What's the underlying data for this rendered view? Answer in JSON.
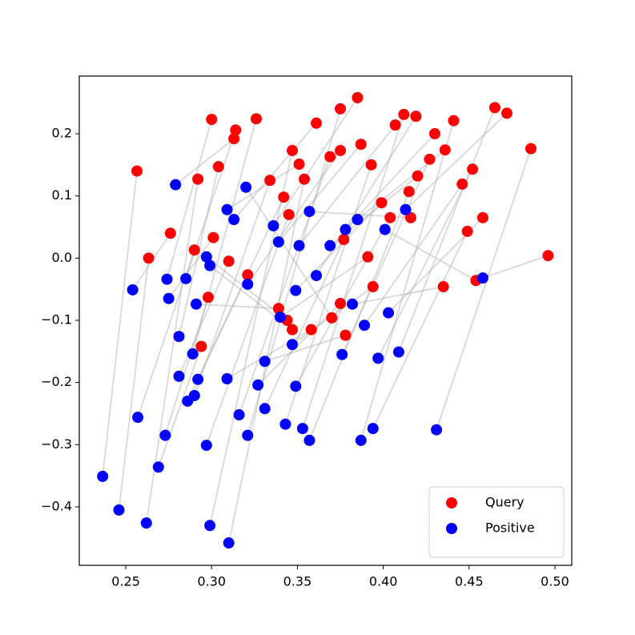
{
  "chart_data": {
    "type": "scatter",
    "connect_pairs": true,
    "pair_line_color": "#b0b0b0",
    "legend": "lower right",
    "xlim": [
      0.2229,
      0.5098
    ],
    "ylim": [
      -0.494,
      0.2927
    ],
    "xticks": [
      0.25,
      {
        "value": 0.3,
        "label": "0.30"
      },
      0.35,
      {
        "value": 0.4,
        "label": "0.40"
      },
      0.45,
      {
        "value": 0.5,
        "label": "0.50"
      }
    ],
    "yticks": [
      {
        "value": -0.4,
        "label": "−0.4"
      },
      {
        "value": -0.3,
        "label": "−0.3"
      },
      {
        "value": -0.2,
        "label": "−0.2"
      },
      {
        "value": -0.1,
        "label": "−0.1"
      },
      {
        "value": 0,
        "label": "0.0"
      },
      0.1,
      0.2
    ],
    "series": [
      {
        "name": "Query",
        "color": "#ff0000",
        "x": [
          0.2565,
          0.2633,
          0.276,
          0.29,
          0.292,
          0.294,
          0.298,
          0.3,
          0.301,
          0.304,
          0.31,
          0.313,
          0.314,
          0.321,
          0.326,
          0.334,
          0.339,
          0.342,
          0.344,
          0.345,
          0.347,
          0.347,
          0.351,
          0.354,
          0.358,
          0.361,
          0.369,
          0.37,
          0.375,
          0.375,
          0.375,
          0.377,
          0.378,
          0.385,
          0.387,
          0.391,
          0.393,
          0.394,
          0.399,
          0.404,
          0.407,
          0.412,
          0.415,
          0.416,
          0.419,
          0.42,
          0.427,
          0.43,
          0.435,
          0.436,
          0.441,
          0.446,
          0.449,
          0.452,
          0.454,
          0.458,
          0.465,
          0.472,
          0.486,
          0.496
        ],
        "y": [
          0.14,
          0.0,
          0.04,
          0.013,
          0.127,
          -0.142,
          -0.063,
          0.223,
          0.033,
          0.147,
          -0.005,
          0.192,
          0.206,
          -0.027,
          0.224,
          0.125,
          -0.081,
          0.098,
          -0.1,
          0.07,
          0.173,
          -0.115,
          0.151,
          0.127,
          -0.115,
          0.217,
          0.163,
          -0.096,
          0.24,
          0.173,
          -0.073,
          0.03,
          -0.124,
          0.258,
          0.183,
          0.002,
          0.15,
          -0.046,
          0.089,
          0.065,
          0.214,
          0.231,
          0.107,
          0.065,
          0.228,
          0.132,
          0.159,
          0.2,
          -0.046,
          0.174,
          0.221,
          0.119,
          0.043,
          0.143,
          -0.036,
          0.065,
          0.242,
          0.233,
          0.176,
          0.004
        ]
      },
      {
        "name": "Positive",
        "color": "#0000ff",
        "x": [
          0.2365,
          0.246,
          0.254,
          0.257,
          0.262,
          0.269,
          0.273,
          0.274,
          0.275,
          0.281,
          0.281,
          0.279,
          0.285,
          0.286,
          0.289,
          0.29,
          0.291,
          0.292,
          0.297,
          0.297,
          0.299,
          0.299,
          0.309,
          0.31,
          0.309,
          0.313,
          0.316,
          0.32,
          0.321,
          0.321,
          0.327,
          0.331,
          0.331,
          0.336,
          0.339,
          0.34,
          0.343,
          0.347,
          0.349,
          0.349,
          0.351,
          0.353,
          0.357,
          0.357,
          0.361,
          0.369,
          0.376,
          0.378,
          0.382,
          0.385,
          0.387,
          0.389,
          0.394,
          0.397,
          0.401,
          0.403,
          0.409,
          0.413,
          0.431,
          0.458
        ],
        "y": [
          -0.351,
          -0.405,
          -0.051,
          -0.256,
          -0.426,
          -0.336,
          -0.285,
          -0.034,
          -0.065,
          -0.126,
          -0.19,
          0.118,
          -0.033,
          -0.23,
          -0.154,
          -0.221,
          -0.074,
          -0.195,
          0.002,
          -0.301,
          -0.43,
          -0.012,
          0.078,
          -0.458,
          -0.194,
          0.062,
          -0.252,
          0.114,
          -0.285,
          -0.042,
          -0.204,
          -0.242,
          -0.166,
          0.052,
          0.026,
          -0.095,
          -0.267,
          -0.139,
          -0.052,
          -0.206,
          0.02,
          -0.274,
          -0.293,
          0.075,
          -0.028,
          0.02,
          -0.155,
          0.046,
          -0.074,
          0.062,
          -0.293,
          -0.108,
          -0.274,
          -0.161,
          0.046,
          -0.088,
          -0.151,
          0.078,
          -0.276,
          -0.032
        ]
      }
    ]
  }
}
